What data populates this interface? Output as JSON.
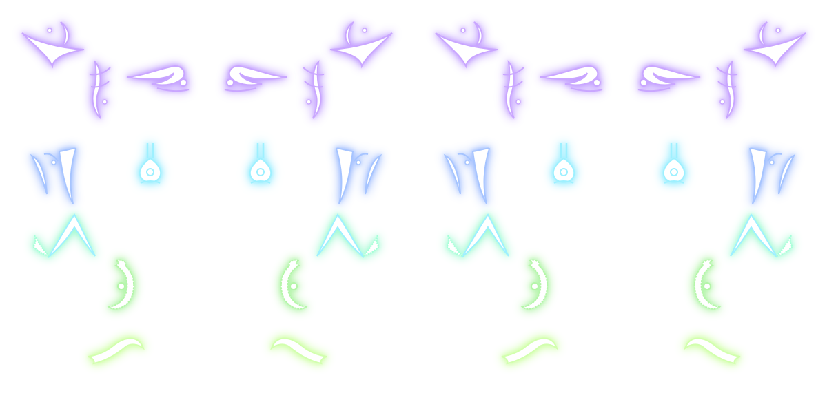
{
  "sheet": {
    "panels": 2,
    "palette": {
      "violet": "#c9a6ff",
      "blue": "#a6c4ff",
      "cyan": "#9ef0ff",
      "mint": "#a6ffd8",
      "green": "#b4f5a8",
      "lime": "#d2ffae",
      "core": "#ffffff"
    },
    "rune_order": [
      "crescent-rune-icon",
      "spire-rune-icon",
      "wing-rune-icon",
      "pillar-rune-icon",
      "drop-rune-icon",
      "chevron-rune-icon",
      "coil-rune-icon",
      "wave-rune-icon"
    ]
  }
}
